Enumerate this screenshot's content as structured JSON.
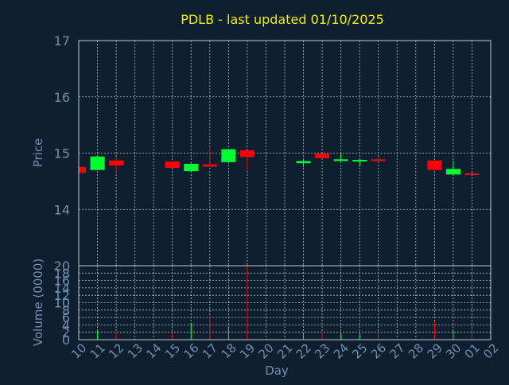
{
  "chart_data": {
    "type": "candlestick",
    "title": "PDLB - last updated 01/10/2025",
    "xlabel": "Day",
    "colors": {
      "background": "#0f1f30",
      "title": "#f0f000",
      "axis_text": "#6f8fb0",
      "frame": "#c0c8d8",
      "grid": "#b8c0d0",
      "up": "#00ff30",
      "down": "#ff0000"
    },
    "x_tick_labels": [
      "10",
      "11",
      "12",
      "13",
      "14",
      "15",
      "16",
      "17",
      "18",
      "19",
      "20",
      "21",
      "22",
      "23",
      "24",
      "25",
      "26",
      "27",
      "28",
      "29",
      "30",
      "01",
      "02"
    ],
    "price_panel": {
      "ylabel": "Price",
      "ylim": [
        13.0,
        17.0
      ],
      "yticks": [
        "14",
        "15",
        "16",
        "17"
      ],
      "candles": [
        {
          "day": "10",
          "open": 14.75,
          "high": 14.75,
          "low": 14.65,
          "close": 14.65
        },
        {
          "day": "11",
          "open": 14.7,
          "high": 14.95,
          "low": 14.7,
          "close": 14.94
        },
        {
          "day": "12",
          "open": 14.87,
          "high": 14.92,
          "low": 14.67,
          "close": 14.78
        },
        {
          "day": "15",
          "open": 14.85,
          "high": 14.85,
          "low": 14.74,
          "close": 14.74
        },
        {
          "day": "16",
          "open": 14.68,
          "high": 14.82,
          "low": 14.66,
          "close": 14.81
        },
        {
          "day": "17",
          "open": 14.8,
          "high": 15.1,
          "low": 14.76,
          "close": 14.76
        },
        {
          "day": "18",
          "open": 14.84,
          "high": 15.07,
          "low": 14.82,
          "close": 15.07
        },
        {
          "day": "19",
          "open": 15.05,
          "high": 15.05,
          "low": 14.7,
          "close": 14.93
        },
        {
          "day": "22",
          "open": 14.82,
          "high": 14.9,
          "low": 14.75,
          "close": 14.86
        },
        {
          "day": "23",
          "open": 14.99,
          "high": 15.0,
          "low": 14.89,
          "close": 14.91
        },
        {
          "day": "24",
          "open": 14.86,
          "high": 15.0,
          "low": 14.85,
          "close": 14.89
        },
        {
          "day": "25",
          "open": 14.86,
          "high": 14.9,
          "low": 14.76,
          "close": 14.88
        },
        {
          "day": "26",
          "open": 14.89,
          "high": 14.92,
          "low": 14.84,
          "close": 14.86
        },
        {
          "day": "29",
          "open": 14.87,
          "high": 14.87,
          "low": 14.7,
          "close": 14.7
        },
        {
          "day": "30",
          "open": 14.62,
          "high": 14.87,
          "low": 14.6,
          "close": 14.72
        },
        {
          "day": "01",
          "open": 14.64,
          "high": 14.65,
          "low": 14.61,
          "close": 14.62
        }
      ]
    },
    "volume_panel": {
      "ylabel": "Volume (0000)",
      "ylim": [
        0,
        20
      ],
      "yticks": [
        "0",
        "2",
        "4",
        "6",
        "8",
        "10",
        "12",
        "14",
        "16",
        "18",
        "20"
      ],
      "bars": [
        {
          "day": "11",
          "value": 2.5,
          "direction": "up"
        },
        {
          "day": "12",
          "value": 2.0,
          "direction": "down"
        },
        {
          "day": "15",
          "value": 1.8,
          "direction": "down"
        },
        {
          "day": "16",
          "value": 4.5,
          "direction": "up"
        },
        {
          "day": "17",
          "value": 6.0,
          "direction": "down"
        },
        {
          "day": "18",
          "value": 3.5,
          "direction": "up"
        },
        {
          "day": "19",
          "value": 20.0,
          "direction": "down"
        },
        {
          "day": "22",
          "value": 1.8,
          "direction": "up"
        },
        {
          "day": "23",
          "value": 2.0,
          "direction": "down"
        },
        {
          "day": "24",
          "value": 1.5,
          "direction": "up"
        },
        {
          "day": "25",
          "value": 1.5,
          "direction": "up"
        },
        {
          "day": "26",
          "value": 1.8,
          "direction": "down"
        },
        {
          "day": "29",
          "value": 5.0,
          "direction": "down"
        },
        {
          "day": "30",
          "value": 2.5,
          "direction": "up"
        },
        {
          "day": "01",
          "value": 3.5,
          "direction": "down"
        }
      ]
    }
  }
}
